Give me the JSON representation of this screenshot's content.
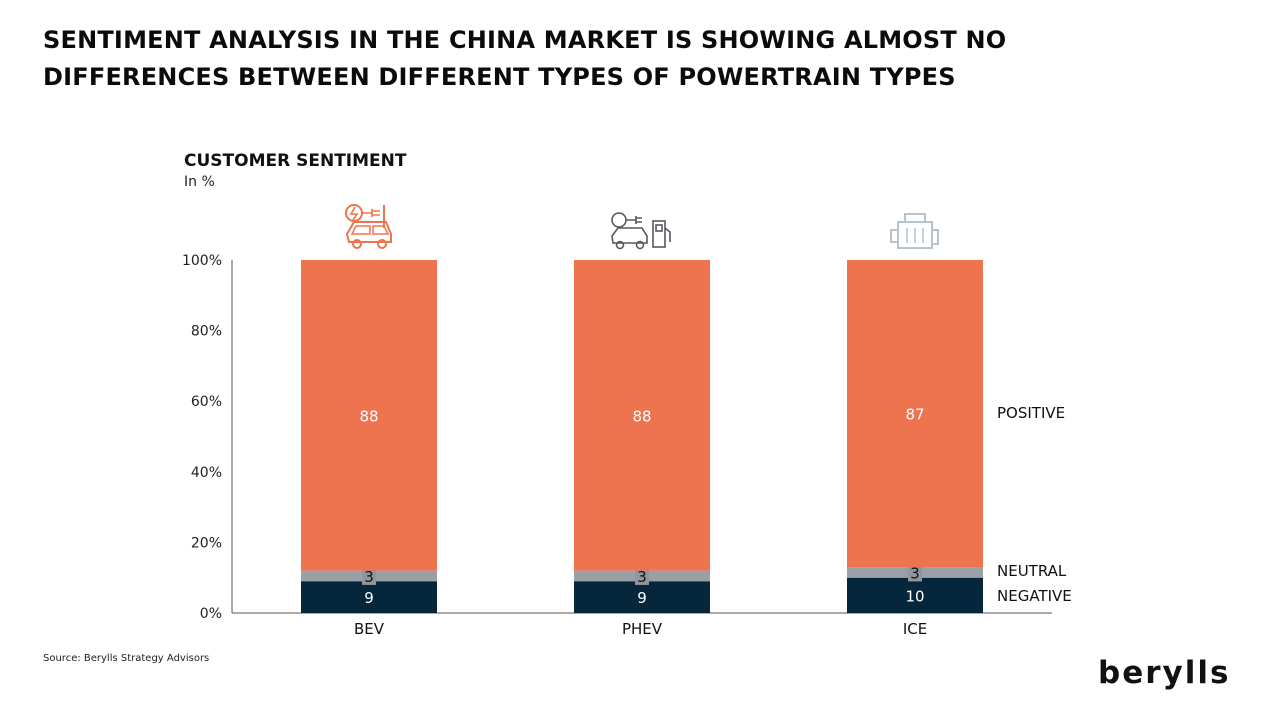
{
  "headline": "SENTIMENT ANALYSIS IN THE CHINA MARKET IS SHOWING ALMOST NO DIFFERENCES BETWEEN DIFFERENT TYPES OF POWERTRAIN TYPES",
  "source": "Source: Berylls Strategy Advisors",
  "logo_text": "berylls",
  "chart_data": {
    "type": "bar",
    "stacked": true,
    "title": "CUSTOMER SENTIMENT",
    "unit": "In %",
    "categories": [
      "BEV",
      "PHEV",
      "ICE"
    ],
    "category_icons": [
      "ev-charging-car-icon",
      "plug-in-hybrid-car-icon",
      "combustion-engine-icon"
    ],
    "series": [
      {
        "name": "NEGATIVE",
        "values": [
          9,
          9,
          10
        ],
        "color": "#06263c"
      },
      {
        "name": "NEUTRAL",
        "values": [
          3,
          3,
          3
        ],
        "color": "#9aa0a6"
      },
      {
        "name": "POSITIVE",
        "values": [
          88,
          88,
          87
        ],
        "color": "#ee7450"
      }
    ],
    "ylim": [
      0,
      100
    ],
    "yticks": [
      "0%",
      "20%",
      "40%",
      "60%",
      "80%",
      "100%"
    ],
    "grid": false,
    "legend": "right-of-last-bar",
    "colors": {
      "icon_ev": "#ee7450",
      "icon_phev": "#555a60",
      "icon_ice": "#b7c3cf",
      "axis": "#555555"
    }
  }
}
